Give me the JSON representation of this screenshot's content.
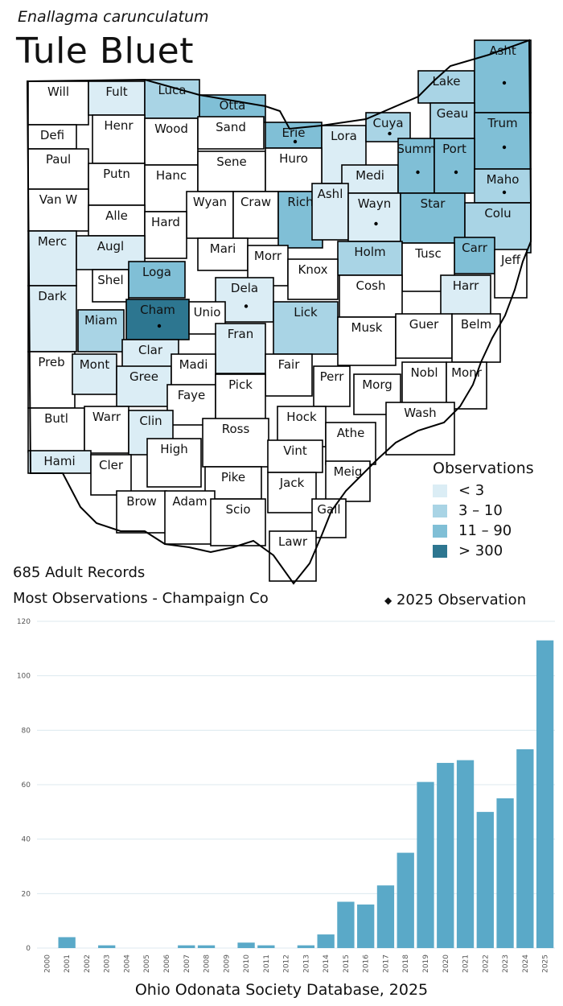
{
  "header": {
    "scientific_name": "Enallagma carunculatum",
    "common_name": "Tule Bluet"
  },
  "legend": {
    "title": "Observations",
    "items": [
      {
        "label": "< 3",
        "color": "#dbedf5"
      },
      {
        "label": "3 – 10",
        "color": "#a9d4e5"
      },
      {
        "label": "11 – 90",
        "color": "#80bfd6"
      },
      {
        "label": "> 300",
        "color": "#2d7690"
      }
    ]
  },
  "map": {
    "counties": [
      {
        "abbr": "Will",
        "level": 0,
        "dot": false
      },
      {
        "abbr": "Fult",
        "level": 1,
        "dot": false
      },
      {
        "abbr": "Luca",
        "level": 2,
        "dot": false
      },
      {
        "abbr": "Otta",
        "level": 3,
        "dot": false
      },
      {
        "abbr": "Lake",
        "level": 2,
        "dot": false
      },
      {
        "abbr": "Asht",
        "level": 3,
        "dot": true
      },
      {
        "abbr": "Defi",
        "level": 0,
        "dot": false
      },
      {
        "abbr": "Henr",
        "level": 0,
        "dot": false
      },
      {
        "abbr": "Wood",
        "level": 0,
        "dot": false
      },
      {
        "abbr": "Sand",
        "level": 0,
        "dot": false
      },
      {
        "abbr": "Erie",
        "level": 3,
        "dot": true
      },
      {
        "abbr": "Lora",
        "level": 1,
        "dot": false
      },
      {
        "abbr": "Cuya",
        "level": 2,
        "dot": true
      },
      {
        "abbr": "Geau",
        "level": 2,
        "dot": false
      },
      {
        "abbr": "Trum",
        "level": 3,
        "dot": true
      },
      {
        "abbr": "Paul",
        "level": 0,
        "dot": false
      },
      {
        "abbr": "Putn",
        "level": 0,
        "dot": false
      },
      {
        "abbr": "Hanc",
        "level": 0,
        "dot": false
      },
      {
        "abbr": "Sene",
        "level": 0,
        "dot": false
      },
      {
        "abbr": "Huro",
        "level": 0,
        "dot": false
      },
      {
        "abbr": "Medi",
        "level": 1,
        "dot": false
      },
      {
        "abbr": "Summ",
        "level": 3,
        "dot": true
      },
      {
        "abbr": "Port",
        "level": 3,
        "dot": true
      },
      {
        "abbr": "Maho",
        "level": 2,
        "dot": true
      },
      {
        "abbr": "Van W",
        "level": 0,
        "dot": false
      },
      {
        "abbr": "Alle",
        "level": 0,
        "dot": false
      },
      {
        "abbr": "Wyan",
        "level": 0,
        "dot": false
      },
      {
        "abbr": "Craw",
        "level": 0,
        "dot": false
      },
      {
        "abbr": "Rich",
        "level": 3,
        "dot": false
      },
      {
        "abbr": "Ashl",
        "level": 1,
        "dot": false
      },
      {
        "abbr": "Wayn",
        "level": 1,
        "dot": true
      },
      {
        "abbr": "Star",
        "level": 3,
        "dot": false
      },
      {
        "abbr": "Colu",
        "level": 2,
        "dot": false
      },
      {
        "abbr": "Hard",
        "level": 0,
        "dot": false
      },
      {
        "abbr": "Merc",
        "level": 1,
        "dot": false
      },
      {
        "abbr": "Augl",
        "level": 1,
        "dot": false
      },
      {
        "abbr": "Mari",
        "level": 0,
        "dot": false
      },
      {
        "abbr": "Morr",
        "level": 0,
        "dot": false
      },
      {
        "abbr": "Holm",
        "level": 2,
        "dot": false
      },
      {
        "abbr": "Carr",
        "level": 3,
        "dot": false
      },
      {
        "abbr": "Tusc",
        "level": 0,
        "dot": false
      },
      {
        "abbr": "Jeff",
        "level": 0,
        "dot": false
      },
      {
        "abbr": "Shel",
        "level": 0,
        "dot": false
      },
      {
        "abbr": "Loga",
        "level": 3,
        "dot": false
      },
      {
        "abbr": "Knox",
        "level": 0,
        "dot": false
      },
      {
        "abbr": "Dela",
        "level": 1,
        "dot": true
      },
      {
        "abbr": "Cosh",
        "level": 0,
        "dot": false
      },
      {
        "abbr": "Harr",
        "level": 1,
        "dot": false
      },
      {
        "abbr": "Dark",
        "level": 1,
        "dot": false
      },
      {
        "abbr": "Miam",
        "level": 2,
        "dot": false
      },
      {
        "abbr": "Cham",
        "level": 4,
        "dot": true
      },
      {
        "abbr": "Unio",
        "level": 0,
        "dot": false
      },
      {
        "abbr": "Lick",
        "level": 2,
        "dot": false
      },
      {
        "abbr": "Musk",
        "level": 0,
        "dot": false
      },
      {
        "abbr": "Guer",
        "level": 0,
        "dot": false
      },
      {
        "abbr": "Belm",
        "level": 0,
        "dot": false
      },
      {
        "abbr": "Clar",
        "level": 1,
        "dot": false
      },
      {
        "abbr": "Fran",
        "level": 1,
        "dot": false
      },
      {
        "abbr": "Preb",
        "level": 0,
        "dot": false
      },
      {
        "abbr": "Mont",
        "level": 1,
        "dot": false
      },
      {
        "abbr": "Gree",
        "level": 1,
        "dot": false
      },
      {
        "abbr": "Madi",
        "level": 0,
        "dot": false
      },
      {
        "abbr": "Fair",
        "level": 0,
        "dot": false
      },
      {
        "abbr": "Perr",
        "level": 0,
        "dot": false
      },
      {
        "abbr": "Nobl",
        "level": 0,
        "dot": false
      },
      {
        "abbr": "Monr",
        "level": 0,
        "dot": false
      },
      {
        "abbr": "Faye",
        "level": 0,
        "dot": false
      },
      {
        "abbr": "Pick",
        "level": 0,
        "dot": false
      },
      {
        "abbr": "Morg",
        "level": 0,
        "dot": false
      },
      {
        "abbr": "Butl",
        "level": 0,
        "dot": false
      },
      {
        "abbr": "Warr",
        "level": 0,
        "dot": false
      },
      {
        "abbr": "Clin",
        "level": 1,
        "dot": false
      },
      {
        "abbr": "Hock",
        "level": 0,
        "dot": false
      },
      {
        "abbr": "Wash",
        "level": 0,
        "dot": false
      },
      {
        "abbr": "Ross",
        "level": 0,
        "dot": false
      },
      {
        "abbr": "Athe",
        "level": 0,
        "dot": false
      },
      {
        "abbr": "Vint",
        "level": 0,
        "dot": false
      },
      {
        "abbr": "Hami",
        "level": 1,
        "dot": false
      },
      {
        "abbr": "Cler",
        "level": 0,
        "dot": false
      },
      {
        "abbr": "High",
        "level": 0,
        "dot": false
      },
      {
        "abbr": "Pike",
        "level": 0,
        "dot": false
      },
      {
        "abbr": "Jack",
        "level": 0,
        "dot": false
      },
      {
        "abbr": "Meig",
        "level": 0,
        "dot": false
      },
      {
        "abbr": "Brow",
        "level": 0,
        "dot": false
      },
      {
        "abbr": "Adam",
        "level": 0,
        "dot": false
      },
      {
        "abbr": "Scio",
        "level": 0,
        "dot": false
      },
      {
        "abbr": "Gall",
        "level": 0,
        "dot": false
      },
      {
        "abbr": "Lawr",
        "level": 0,
        "dot": false
      }
    ]
  },
  "summary": {
    "records": "685 Adult Records",
    "most": "Most Observations - Champaign Co",
    "dot_legend": "2025  Observation"
  },
  "chart_data": {
    "type": "bar",
    "title": "",
    "xlabel": "",
    "ylabel": "",
    "categories": [
      "2000",
      "2001",
      "2002",
      "2003",
      "2004",
      "2005",
      "2006",
      "2007",
      "2008",
      "2009",
      "2010",
      "2011",
      "2012",
      "2013",
      "2014",
      "2015",
      "2016",
      "2017",
      "2018",
      "2019",
      "2020",
      "2021",
      "2022",
      "2023",
      "2024",
      "2025"
    ],
    "values": [
      0,
      4,
      0,
      1,
      0,
      0,
      0,
      1,
      1,
      0,
      2,
      1,
      0,
      1,
      5,
      17,
      16,
      23,
      35,
      61,
      68,
      69,
      50,
      55,
      73,
      113
    ],
    "ylim": [
      0,
      120
    ],
    "yticks": [
      0,
      20,
      40,
      60,
      80,
      100,
      120
    ],
    "grid": true,
    "bar_color": "#5aa9c8"
  },
  "footer": {
    "source": "Ohio Odonata Society Database, 2025"
  }
}
